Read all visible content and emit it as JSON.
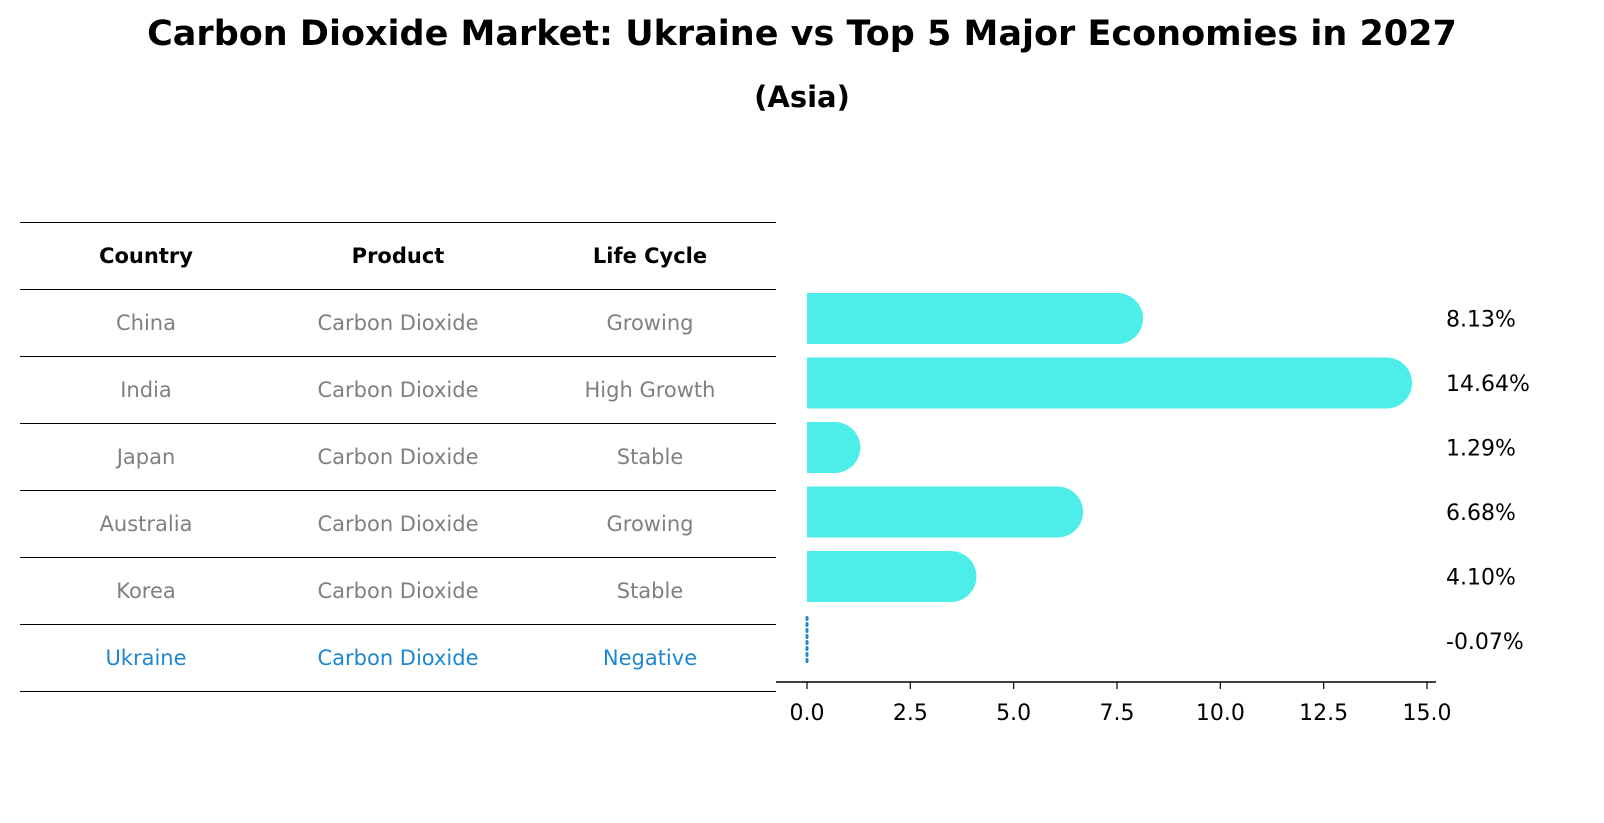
{
  "title": "Carbon Dioxide Market: Ukraine vs Top 5 Major Economies in 2027",
  "subtitle": "(Asia)",
  "table": {
    "headers": [
      "Country",
      "Product",
      "Life Cycle"
    ],
    "rows": [
      {
        "country": "China",
        "product": "Carbon Dioxide",
        "life_cycle": "Growing"
      },
      {
        "country": "India",
        "product": "Carbon Dioxide",
        "life_cycle": "High Growth"
      },
      {
        "country": "Japan",
        "product": "Carbon Dioxide",
        "life_cycle": "Stable"
      },
      {
        "country": "Australia",
        "product": "Carbon Dioxide",
        "life_cycle": "Growing"
      },
      {
        "country": "Korea",
        "product": "Carbon Dioxide",
        "life_cycle": "Stable"
      },
      {
        "country": "Ukraine",
        "product": "Carbon Dioxide",
        "life_cycle": "Negative"
      }
    ]
  },
  "chart_data": {
    "type": "bar",
    "orientation": "horizontal",
    "categories": [
      "China",
      "India",
      "Japan",
      "Australia",
      "Korea",
      "Ukraine"
    ],
    "values": [
      8.13,
      14.64,
      1.29,
      6.68,
      4.1,
      -0.07
    ],
    "value_labels": [
      "8.13%",
      "14.64%",
      "1.29%",
      "6.68%",
      "4.10%",
      "-0.07%"
    ],
    "xlim": [
      -0.8,
      15.4
    ],
    "xticks": [
      0.0,
      2.5,
      5.0,
      7.5,
      10.0,
      12.5,
      15.0
    ],
    "xtick_labels": [
      "0.0",
      "2.5",
      "5.0",
      "7.5",
      "10.0",
      "12.5",
      "15.0"
    ],
    "grid": false,
    "colors": {
      "bar": "#4deeea",
      "highlight": "#1f87d0",
      "text": "#000000",
      "muted": "#808080"
    }
  }
}
